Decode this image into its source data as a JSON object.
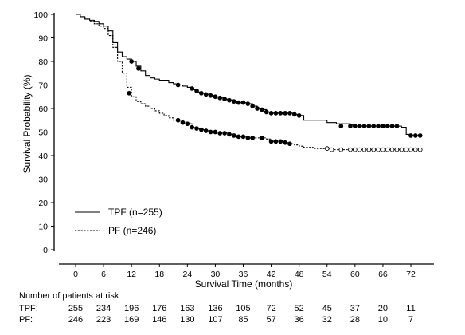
{
  "chart_data": {
    "type": "line",
    "title": "",
    "xlabel": "Survival Time (months)",
    "ylabel": "Survival Probability (%)",
    "xlim": [
      -3,
      75
    ],
    "ylim": [
      0,
      100
    ],
    "x_ticks": [
      0,
      6,
      12,
      18,
      24,
      30,
      36,
      42,
      48,
      54,
      60,
      66,
      72
    ],
    "y_ticks": [
      0,
      10,
      20,
      30,
      40,
      50,
      60,
      70,
      80,
      90,
      100
    ],
    "grid": false,
    "legend_position": "lower-left",
    "series": [
      {
        "name": "TPF (n=255)",
        "style": "solid",
        "color": "#000000",
        "points": [
          [
            0,
            100
          ],
          [
            1,
            99
          ],
          [
            2,
            98
          ],
          [
            3,
            97.5
          ],
          [
            4,
            97
          ],
          [
            5,
            96
          ],
          [
            6,
            95
          ],
          [
            7,
            93
          ],
          [
            8,
            88
          ],
          [
            9,
            84
          ],
          [
            10,
            82
          ],
          [
            11,
            81
          ],
          [
            12,
            80
          ],
          [
            13,
            78
          ],
          [
            14,
            76
          ],
          [
            15,
            74
          ],
          [
            16,
            73
          ],
          [
            17,
            72.5
          ],
          [
            18,
            72
          ],
          [
            19,
            72
          ],
          [
            20,
            71
          ],
          [
            21,
            70.5
          ],
          [
            22,
            70
          ],
          [
            23,
            69.5
          ],
          [
            24,
            69
          ],
          [
            25,
            68
          ],
          [
            26,
            67
          ],
          [
            27,
            66.5
          ],
          [
            28,
            66
          ],
          [
            29,
            65.5
          ],
          [
            30,
            65
          ],
          [
            31,
            64.5
          ],
          [
            32,
            64
          ],
          [
            33,
            63.5
          ],
          [
            34,
            63
          ],
          [
            35,
            62.5
          ],
          [
            36,
            62.5
          ],
          [
            37,
            62
          ],
          [
            38,
            61
          ],
          [
            39,
            60
          ],
          [
            40,
            59.5
          ],
          [
            41,
            58.5
          ],
          [
            42,
            58
          ],
          [
            43,
            58
          ],
          [
            44,
            58
          ],
          [
            45,
            58
          ],
          [
            46,
            58
          ],
          [
            47,
            57.5
          ],
          [
            48,
            57
          ],
          [
            49,
            55
          ],
          [
            50,
            55
          ],
          [
            51,
            55
          ],
          [
            52,
            55
          ],
          [
            53,
            55
          ],
          [
            54,
            54
          ],
          [
            55,
            54
          ],
          [
            56,
            53.5
          ],
          [
            57,
            53.5
          ],
          [
            58,
            53.5
          ],
          [
            59,
            53
          ],
          [
            60,
            52.5
          ],
          [
            61,
            52.5
          ],
          [
            62,
            52.5
          ],
          [
            63,
            52.5
          ],
          [
            64,
            52.5
          ],
          [
            65,
            52.5
          ],
          [
            66,
            52.5
          ],
          [
            67,
            52.5
          ],
          [
            68,
            52.5
          ],
          [
            69,
            52.5
          ],
          [
            70,
            52
          ],
          [
            71,
            49
          ],
          [
            72,
            48.5
          ],
          [
            73,
            48.5
          ],
          [
            74,
            48.5
          ]
        ]
      },
      {
        "name": "PF (n=246)",
        "style": "dashed",
        "color": "#000000",
        "points": [
          [
            0,
            100
          ],
          [
            1,
            99
          ],
          [
            2,
            98
          ],
          [
            3,
            97
          ],
          [
            4,
            96
          ],
          [
            5,
            95
          ],
          [
            6,
            94
          ],
          [
            7,
            91
          ],
          [
            8,
            86
          ],
          [
            9,
            80
          ],
          [
            10,
            75
          ],
          [
            11,
            69
          ],
          [
            12,
            65
          ],
          [
            13,
            63
          ],
          [
            14,
            62
          ],
          [
            15,
            61
          ],
          [
            16,
            60
          ],
          [
            17,
            59
          ],
          [
            18,
            58
          ],
          [
            19,
            57
          ],
          [
            20,
            56
          ],
          [
            21,
            55
          ],
          [
            22,
            54.5
          ],
          [
            23,
            54
          ],
          [
            24,
            53.5
          ],
          [
            25,
            52
          ],
          [
            26,
            51.5
          ],
          [
            27,
            51
          ],
          [
            28,
            50.5
          ],
          [
            29,
            50
          ],
          [
            30,
            50
          ],
          [
            31,
            49.5
          ],
          [
            32,
            49.5
          ],
          [
            33,
            49
          ],
          [
            34,
            48.5
          ],
          [
            35,
            48
          ],
          [
            36,
            48
          ],
          [
            37,
            47.5
          ],
          [
            38,
            47.5
          ],
          [
            39,
            47.5
          ],
          [
            40,
            47.5
          ],
          [
            41,
            47
          ],
          [
            42,
            46
          ],
          [
            43,
            46
          ],
          [
            44,
            46
          ],
          [
            45,
            45.5
          ],
          [
            46,
            45
          ],
          [
            47,
            44.5
          ],
          [
            48,
            44
          ],
          [
            49,
            43.5
          ],
          [
            50,
            43.5
          ],
          [
            51,
            43
          ],
          [
            52,
            43
          ],
          [
            53,
            43
          ],
          [
            54,
            43
          ],
          [
            55,
            42.5
          ],
          [
            56,
            42.5
          ],
          [
            57,
            42.5
          ],
          [
            58,
            42.5
          ],
          [
            59,
            42.5
          ],
          [
            60,
            42.5
          ],
          [
            61,
            42.5
          ],
          [
            62,
            42.5
          ],
          [
            63,
            42.5
          ],
          [
            64,
            42.5
          ],
          [
            65,
            42.5
          ],
          [
            66,
            42.5
          ],
          [
            67,
            42.5
          ],
          [
            68,
            42.5
          ],
          [
            69,
            42.5
          ],
          [
            70,
            42.5
          ],
          [
            71,
            42.5
          ],
          [
            72,
            42.5
          ],
          [
            73,
            42.5
          ],
          [
            74,
            42.5
          ]
        ]
      }
    ],
    "censor_marks": {
      "TPF (n=255)": [
        [
          12,
          80
        ],
        [
          13.5,
          77
        ],
        [
          22,
          70
        ],
        [
          25,
          68.5
        ],
        [
          26,
          67.5
        ],
        [
          27,
          66.5
        ],
        [
          28,
          66
        ],
        [
          29,
          65.5
        ],
        [
          30,
          65
        ],
        [
          31,
          64.5
        ],
        [
          32,
          64
        ],
        [
          33,
          63.5
        ],
        [
          34,
          63
        ],
        [
          35,
          62.5
        ],
        [
          36,
          62.5
        ],
        [
          37,
          62
        ],
        [
          38,
          61
        ],
        [
          39,
          60
        ],
        [
          40,
          59.5
        ],
        [
          41,
          58.5
        ],
        [
          42,
          58
        ],
        [
          43,
          58
        ],
        [
          44,
          58
        ],
        [
          45,
          58
        ],
        [
          46,
          58
        ],
        [
          47,
          57.5
        ],
        [
          48,
          57
        ],
        [
          57,
          52.5
        ],
        [
          59,
          52.5
        ],
        [
          60,
          52.5
        ],
        [
          61,
          52.5
        ],
        [
          62,
          52.5
        ],
        [
          63,
          52.5
        ],
        [
          64,
          52.5
        ],
        [
          65,
          52.5
        ],
        [
          66,
          52.5
        ],
        [
          67,
          52.5
        ],
        [
          68,
          52.5
        ],
        [
          69,
          52.5
        ],
        [
          72,
          48.5
        ],
        [
          73,
          48.5
        ],
        [
          74,
          48.5
        ]
      ],
      "PF (n=246)": [
        [
          11.5,
          66.5
        ],
        [
          22,
          55
        ],
        [
          23,
          54
        ],
        [
          24,
          53.5
        ],
        [
          25,
          52
        ],
        [
          26,
          51.5
        ],
        [
          27,
          51
        ],
        [
          28,
          50.5
        ],
        [
          29,
          50
        ],
        [
          30,
          50
        ],
        [
          31,
          49.5
        ],
        [
          32,
          49.5
        ],
        [
          33,
          49
        ],
        [
          34,
          48.5
        ],
        [
          35,
          48
        ],
        [
          36,
          48
        ],
        [
          37,
          47.5
        ],
        [
          38,
          47.5
        ],
        [
          40,
          47.5
        ],
        [
          42,
          46
        ],
        [
          43,
          46
        ],
        [
          44,
          46
        ],
        [
          45,
          45.5
        ],
        [
          46,
          45
        ],
        [
          54,
          43
        ],
        [
          55,
          42.5
        ],
        [
          57,
          42.5
        ],
        [
          59,
          42.5
        ],
        [
          60,
          42.5
        ],
        [
          61,
          42.5
        ],
        [
          62,
          42.5
        ],
        [
          63,
          42.5
        ],
        [
          64,
          42.5
        ],
        [
          65,
          42.5
        ],
        [
          66,
          42.5
        ],
        [
          67,
          42.5
        ],
        [
          68,
          42.5
        ],
        [
          69,
          42.5
        ],
        [
          70,
          42.5
        ],
        [
          71,
          42.5
        ],
        [
          72,
          42.5
        ],
        [
          73,
          42.5
        ],
        [
          74,
          42.5
        ]
      ]
    },
    "risk_table": {
      "title": "Number of patients at risk",
      "rows": [
        {
          "label": "TPF:",
          "values": [
            255,
            234,
            196,
            176,
            163,
            136,
            105,
            72,
            52,
            45,
            37,
            20,
            11
          ]
        },
        {
          "label": "PF:",
          "values": [
            246,
            223,
            169,
            146,
            130,
            107,
            85,
            57,
            36,
            32,
            28,
            10,
            7
          ]
        }
      ]
    }
  }
}
